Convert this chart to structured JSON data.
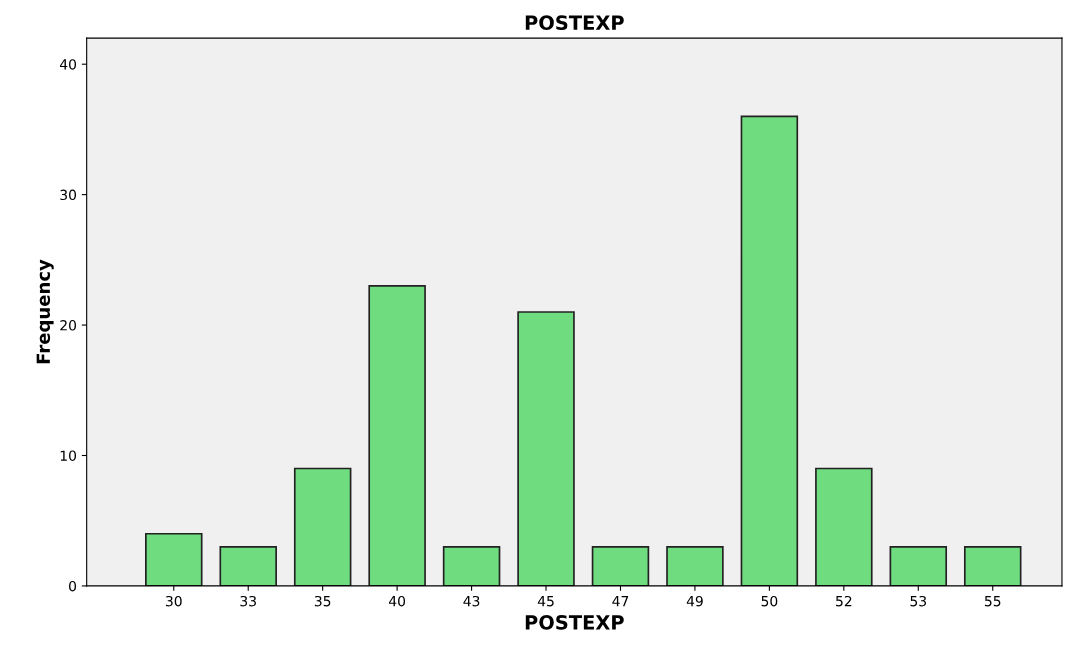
{
  "chart_data": {
    "type": "bar",
    "title": "POSTEXP",
    "xlabel": "POSTEXP",
    "ylabel": "Frequency",
    "categories": [
      "30",
      "33",
      "35",
      "40",
      "43",
      "45",
      "47",
      "49",
      "50",
      "52",
      "53",
      "55"
    ],
    "values": [
      4,
      3,
      9,
      23,
      3,
      21,
      3,
      3,
      36,
      9,
      3,
      3
    ],
    "color": "#6fdc80",
    "ylim": [
      0,
      42
    ],
    "yticks": [
      0,
      10,
      20,
      30,
      40
    ],
    "grid": false,
    "legend": false
  }
}
